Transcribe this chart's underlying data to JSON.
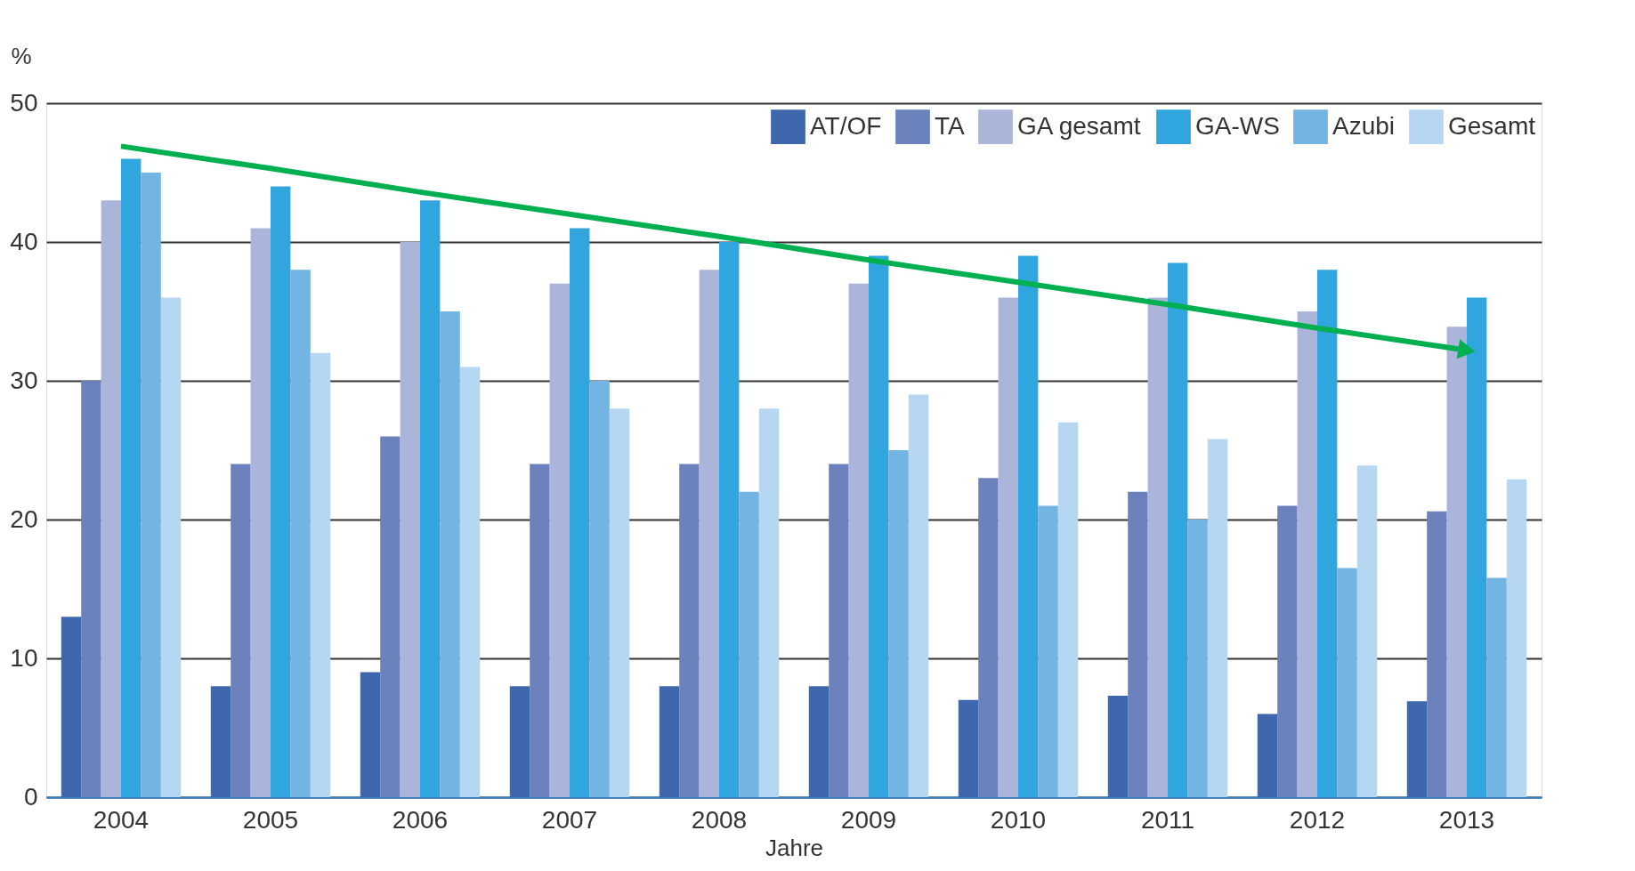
{
  "chart_data": {
    "type": "bar",
    "ylabel": "%",
    "xlabel": "Jahre",
    "categories": [
      "2004",
      "2005",
      "2006",
      "2007",
      "2008",
      "2009",
      "2010",
      "2011",
      "2012",
      "2013"
    ],
    "series": [
      {
        "name": "AT/OF",
        "color": "#3f67ae",
        "values": [
          13,
          8,
          9,
          8,
          8,
          8,
          7,
          7.3,
          6,
          6.9
        ]
      },
      {
        "name": "TA",
        "color": "#6b81bc",
        "values": [
          30,
          24,
          26,
          24,
          24,
          24,
          23,
          22,
          21,
          20.6
        ]
      },
      {
        "name": "GA gesamt",
        "color": "#abb5da",
        "values": [
          43,
          41,
          40,
          37,
          38,
          37,
          36,
          36,
          35,
          33.9
        ]
      },
      {
        "name": "GA-WS",
        "color": "#30a5de",
        "values": [
          46,
          44,
          43,
          41,
          40,
          39,
          39,
          38.5,
          38,
          36
        ]
      },
      {
        "name": "Azubi",
        "color": "#72b4e2",
        "values": [
          45,
          38,
          35,
          30,
          22,
          25,
          21,
          20,
          16.5,
          15.8
        ]
      },
      {
        "name": "Gesamt",
        "color": "#b6d6f2",
        "values": [
          36,
          32,
          31,
          28,
          28,
          29,
          27,
          25.8,
          23.9,
          22.9
        ]
      },
      {
        "type": "line",
        "color": "#00b050",
        "values": [
          46.9,
          45.3,
          43.6,
          42.0,
          40.4,
          38.7,
          37.1,
          35.5,
          33.8,
          32.2
        ]
      }
    ],
    "ylim": [
      0,
      50
    ],
    "yticks": [
      0,
      10,
      20,
      30,
      40,
      50
    ],
    "grid": "y",
    "legend": "top right"
  }
}
